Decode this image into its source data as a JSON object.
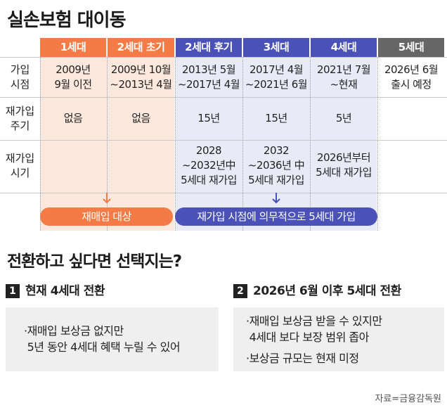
{
  "title": "실손보험 대이동",
  "colors": {
    "orange": "#f47b45",
    "purple": "#4a52b8",
    "gray": "#666666",
    "orange_bg": "#fde8de",
    "purple_bg": "#e9eaf7"
  },
  "table": {
    "columns": [
      "1세대",
      "2세대 초기",
      "2세대 후기",
      "3세대",
      "4세대",
      "5세대"
    ],
    "rows": [
      {
        "label": [
          "가입",
          "시점"
        ],
        "cells": [
          [
            "2009년",
            "9월 이전"
          ],
          [
            "2009년 10월",
            "~2013년 4월"
          ],
          [
            "2013년 5월",
            "~2017년 4월"
          ],
          [
            "2017년 4월",
            "~2021년 6월"
          ],
          [
            "2021년 7월",
            "~현재"
          ],
          [
            "2026년 6월",
            "출시 예정"
          ]
        ]
      },
      {
        "label": [
          "재가입",
          "주기"
        ],
        "cells": [
          [
            "없음"
          ],
          [
            "없음"
          ],
          [
            "15년"
          ],
          [
            "15년"
          ],
          [
            "5년"
          ],
          []
        ]
      },
      {
        "label": [
          "재가입",
          "시기"
        ],
        "cells": [
          [],
          [],
          [
            "2028",
            "~2032년中",
            "5세대 재가입"
          ],
          [
            "2032",
            "~2036년 中",
            "5세대 재가입"
          ],
          [
            "2026년부터",
            "5세대 재가입"
          ],
          []
        ]
      }
    ]
  },
  "pills": {
    "left": "재매입 대상",
    "right": "재가입 시점에 의무적으로 5세대 가입"
  },
  "section_title": "전환하고 싶다면 선택지는?",
  "options": [
    {
      "number": "1",
      "title": "현재 4세대 전환",
      "bullets": [
        "·재매입 보상금 없지만\n 5년 동안 4세대 혜택 누릴 수 있어"
      ]
    },
    {
      "number": "2",
      "title": "2026년 6월 이후 5세대 전환",
      "bullets": [
        "·재매입 보상금 받을 수 있지만\n 4세대 보다 보장 범위 좁아",
        "·보상금 규모는 현재 미정"
      ]
    }
  ],
  "source": "자료=금융감독원"
}
